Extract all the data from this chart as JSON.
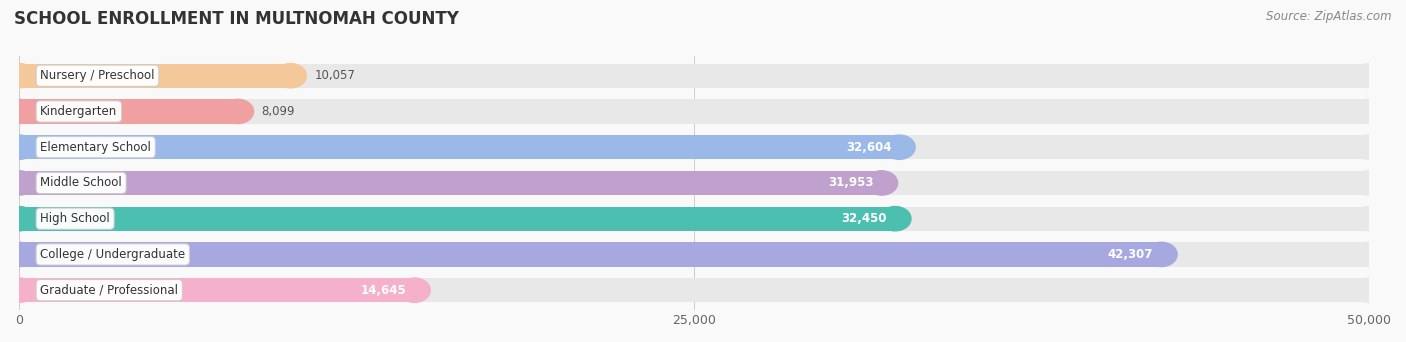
{
  "title": "SCHOOL ENROLLMENT IN MULTNOMAH COUNTY",
  "source": "Source: ZipAtlas.com",
  "categories": [
    "Nursery / Preschool",
    "Kindergarten",
    "Elementary School",
    "Middle School",
    "High School",
    "College / Undergraduate",
    "Graduate / Professional"
  ],
  "values": [
    10057,
    8099,
    32604,
    31953,
    32450,
    42307,
    14645
  ],
  "bar_colors": [
    "#f5c89a",
    "#f0a0a0",
    "#9ab8e8",
    "#c0a0cc",
    "#4dbfb0",
    "#a8a8e0",
    "#f5b0cc"
  ],
  "bar_bg_color": "#e8e8e8",
  "label_bg_color": "#ffffff",
  "xlim": [
    0,
    50000
  ],
  "xticks": [
    0,
    25000,
    50000
  ],
  "xtick_labels": [
    "0",
    "25,000",
    "50,000"
  ],
  "background_color": "#f9f9f9",
  "title_fontsize": 12,
  "source_fontsize": 8.5,
  "label_fontsize": 8.5,
  "value_fontsize": 8.5,
  "bar_height": 0.68,
  "bar_gap": 0.15
}
